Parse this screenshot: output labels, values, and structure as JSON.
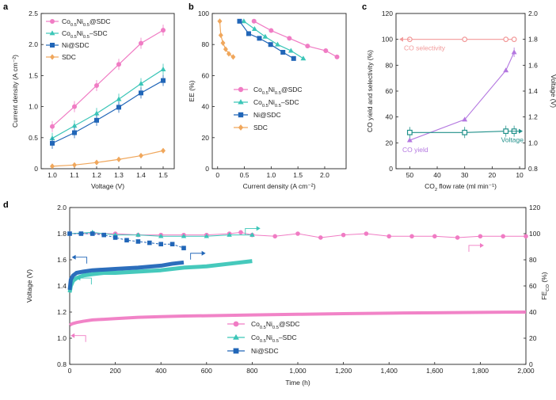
{
  "colors": {
    "co_sdc": "#f07cc4",
    "co_ni_sdc": "#3cc6b8",
    "ni_sdc": "#2166b8",
    "sdc": "#f0a75c",
    "c_selectivity": "#f29a9a",
    "c_yield": "#b478e0",
    "c_voltage": "#20908a",
    "axis": "#222222"
  },
  "chart_data": [
    {
      "panel": "a",
      "type": "line",
      "xlabel": "Voltage (V)",
      "ylabel": "Current density (A cm⁻²)",
      "xlim": [
        0.95,
        1.55
      ],
      "ylim": [
        0,
        2.5
      ],
      "xticks": [
        "1.0",
        "1.1",
        "1.2",
        "1.3",
        "1.4",
        "1.5"
      ],
      "xtick_values": [
        1.0,
        1.1,
        1.2,
        1.3,
        1.4,
        1.5
      ],
      "yticks": [
        "0",
        "0.5",
        "1.0",
        "1.5",
        "2.0",
        "2.5"
      ],
      "ytick_values": [
        0,
        0.5,
        1.0,
        1.5,
        2.0,
        2.5
      ],
      "legend_position": "top-left",
      "series": [
        {
          "key": "co_sdc",
          "name_parts": [
            "Co",
            "0.5",
            "Ni",
            "0.5",
            "@SDC"
          ],
          "marker": "circle",
          "x": [
            1.0,
            1.1,
            1.2,
            1.3,
            1.4,
            1.5
          ],
          "y": [
            0.68,
            1.0,
            1.34,
            1.68,
            2.02,
            2.23
          ]
        },
        {
          "key": "co_ni_sdc",
          "name_parts": [
            "Co",
            "0.5",
            "Ni",
            "0.5",
            "–SDC"
          ],
          "marker": "triangle",
          "x": [
            1.0,
            1.1,
            1.2,
            1.3,
            1.4,
            1.5
          ],
          "y": [
            0.49,
            0.69,
            0.89,
            1.12,
            1.37,
            1.6
          ]
        },
        {
          "key": "ni_sdc",
          "name_parts": [
            "Ni@SDC"
          ],
          "marker": "square",
          "x": [
            1.0,
            1.1,
            1.2,
            1.3,
            1.4,
            1.5
          ],
          "y": [
            0.41,
            0.58,
            0.78,
            0.99,
            1.22,
            1.42
          ]
        },
        {
          "key": "sdc",
          "name_parts": [
            "SDC"
          ],
          "marker": "diamond",
          "x": [
            1.0,
            1.1,
            1.2,
            1.3,
            1.4,
            1.5
          ],
          "y": [
            0.04,
            0.06,
            0.1,
            0.15,
            0.21,
            0.29
          ]
        }
      ]
    },
    {
      "panel": "b",
      "type": "line",
      "xlabel": "Current density (A cm⁻²)",
      "ylabel": "EE (%)",
      "xlim": [
        -0.1,
        2.4
      ],
      "ylim": [
        0,
        100
      ],
      "xticks": [
        "0",
        "0.5",
        "1.0",
        "1.5",
        "2.0"
      ],
      "xtick_values": [
        0,
        0.5,
        1.0,
        1.5,
        2.0
      ],
      "yticks": [
        "0",
        "20",
        "40",
        "60",
        "80",
        "100"
      ],
      "ytick_values": [
        0,
        20,
        40,
        60,
        80,
        100
      ],
      "legend_position": "center-left",
      "series": [
        {
          "key": "co_sdc",
          "name_parts": [
            "Co",
            "0.5",
            "Ni",
            "0.5",
            "@SDC"
          ],
          "marker": "circle",
          "x": [
            0.68,
            1.0,
            1.34,
            1.68,
            2.02,
            2.23
          ],
          "y": [
            95,
            89,
            84,
            79,
            76,
            72
          ]
        },
        {
          "key": "co_ni_sdc",
          "name_parts": [
            "Co",
            "0.5",
            "Ni",
            "0.5",
            "–SDC"
          ],
          "marker": "triangle",
          "x": [
            0.49,
            0.69,
            0.89,
            1.12,
            1.37,
            1.6
          ],
          "y": [
            95,
            90,
            85,
            80,
            76,
            71
          ]
        },
        {
          "key": "ni_sdc",
          "name_parts": [
            "Ni@SDC"
          ],
          "marker": "square",
          "x": [
            0.41,
            0.58,
            0.78,
            0.99,
            1.22,
            1.42
          ],
          "y": [
            95,
            87,
            84,
            80,
            75,
            71
          ]
        },
        {
          "key": "sdc",
          "name_parts": [
            "SDC"
          ],
          "marker": "diamond",
          "x": [
            0.04,
            0.06,
            0.1,
            0.15,
            0.21,
            0.29
          ],
          "y": [
            95,
            86,
            81,
            77,
            74,
            72
          ]
        }
      ]
    },
    {
      "panel": "c",
      "type": "line",
      "xlabel_parts": [
        "CO",
        "2",
        " flow rate (ml min⁻¹)"
      ],
      "ylabel": "CO yield and selectivity (%)",
      "ylabel_right": "Voltage (V)",
      "xlim": [
        55,
        8
      ],
      "ylim": [
        0,
        120
      ],
      "ylim_right": [
        0.8,
        2.0
      ],
      "xticks": [
        "50",
        "40",
        "30",
        "20",
        "10"
      ],
      "xtick_values": [
        50,
        40,
        30,
        20,
        10
      ],
      "yticks": [
        "0",
        "20",
        "40",
        "60",
        "80",
        "100",
        "120"
      ],
      "ytick_values": [
        0,
        20,
        40,
        60,
        80,
        100,
        120
      ],
      "yticks_right": [
        "0.8",
        "1.0",
        "1.2",
        "1.4",
        "1.6",
        "1.8",
        "2.0"
      ],
      "ytick_values_right": [
        0.8,
        1.0,
        1.2,
        1.4,
        1.6,
        1.8,
        2.0
      ],
      "annotations": {
        "selectivity": "CO selectivity",
        "yield": "CO yield",
        "voltage": "Voltage"
      },
      "series": [
        {
          "key": "selectivity",
          "name": "CO selectivity",
          "marker": "circle",
          "axis": "left",
          "x": [
            50,
            30,
            15,
            12
          ],
          "y": [
            100,
            100,
            100,
            100
          ]
        },
        {
          "key": "yield",
          "name": "CO yield",
          "marker": "triangle",
          "axis": "left",
          "x": [
            50,
            30,
            15,
            12
          ],
          "y": [
            22,
            38,
            76,
            90
          ]
        },
        {
          "key": "voltage",
          "name": "Voltage",
          "marker": "square",
          "axis": "right",
          "x": [
            50,
            30,
            15,
            12
          ],
          "y": [
            1.08,
            1.08,
            1.09,
            1.09
          ]
        }
      ]
    },
    {
      "panel": "d",
      "type": "line",
      "xlabel": "Time (h)",
      "ylabel": "Voltage (V)",
      "ylabel_right_parts": [
        "FE",
        "CO",
        " (%)"
      ],
      "xlim": [
        0,
        2000
      ],
      "ylim": [
        0.8,
        2.0
      ],
      "ylim_right": [
        0,
        120
      ],
      "xticks": [
        "0",
        "200",
        "400",
        "600",
        "800",
        "1,000",
        "1,200",
        "1,400",
        "1,600",
        "1,800",
        "2,000"
      ],
      "xtick_values": [
        0,
        200,
        400,
        600,
        800,
        1000,
        1200,
        1400,
        1600,
        1800,
        2000
      ],
      "yticks": [
        "0.8",
        "1.0",
        "1.2",
        "1.4",
        "1.6",
        "1.8",
        "2.0"
      ],
      "ytick_values": [
        0.8,
        1.0,
        1.2,
        1.4,
        1.6,
        1.8,
        2.0
      ],
      "yticks_right": [
        "0",
        "20",
        "40",
        "60",
        "80",
        "100",
        "120"
      ],
      "ytick_values_right": [
        0,
        20,
        40,
        60,
        80,
        100,
        120
      ],
      "legend_position": "bottom-center",
      "voltage_series": [
        {
          "key": "co_sdc",
          "t": [
            0,
            10,
            30,
            60,
            100,
            150,
            200,
            300,
            400,
            500,
            600,
            700,
            800,
            1000,
            1200,
            1400,
            1600,
            1800,
            2000
          ],
          "v": [
            1.1,
            1.11,
            1.12,
            1.13,
            1.14,
            1.145,
            1.15,
            1.16,
            1.165,
            1.17,
            1.172,
            1.175,
            1.178,
            1.183,
            1.188,
            1.192,
            1.195,
            1.198,
            1.2
          ]
        },
        {
          "key": "co_ni_sdc",
          "t": [
            0,
            5,
            15,
            30,
            60,
            100,
            150,
            200,
            300,
            400,
            500,
            600,
            700,
            800
          ],
          "v": [
            1.35,
            1.4,
            1.44,
            1.46,
            1.48,
            1.49,
            1.5,
            1.5,
            1.51,
            1.52,
            1.54,
            1.55,
            1.57,
            1.59
          ]
        },
        {
          "key": "ni_sdc",
          "t": [
            0,
            5,
            15,
            30,
            60,
            100,
            150,
            200,
            300,
            400,
            450,
            500
          ],
          "v": [
            1.37,
            1.45,
            1.48,
            1.5,
            1.51,
            1.52,
            1.525,
            1.53,
            1.54,
            1.555,
            1.57,
            1.58
          ]
        }
      ],
      "fe_series": [
        {
          "key": "co_sdc",
          "t": [
            0,
            100,
            200,
            300,
            400,
            500,
            600,
            700,
            750,
            800,
            900,
            1000,
            1100,
            1200,
            1300,
            1400,
            1500,
            1600,
            1700,
            1800,
            1900,
            2000
          ],
          "fe": [
            100,
            100,
            100,
            99,
            99,
            99,
            99,
            100,
            101,
            99,
            98,
            100,
            97,
            99,
            100,
            98,
            98,
            98,
            97,
            98,
            98,
            98
          ]
        },
        {
          "key": "co_ni_sdc",
          "t": [
            0,
            100,
            200,
            300,
            400,
            500,
            600,
            700,
            800
          ],
          "fe": [
            100,
            101,
            99,
            99,
            98,
            98,
            98,
            99,
            99
          ]
        },
        {
          "key": "ni_sdc",
          "t": [
            0,
            50,
            100,
            150,
            200,
            250,
            300,
            350,
            400,
            450,
            500
          ],
          "fe": [
            100,
            100,
            100,
            99,
            97,
            95,
            94,
            93,
            92,
            92,
            89
          ]
        }
      ],
      "legend": [
        {
          "key": "co_sdc",
          "marker": "circle",
          "name_parts": [
            "Co",
            "0.5",
            "Ni",
            "0.5",
            "@SDC"
          ]
        },
        {
          "key": "co_ni_sdc",
          "marker": "triangle",
          "name_parts": [
            "Co",
            "0.5",
            "Ni",
            "0.5",
            "–SDC"
          ]
        },
        {
          "key": "ni_sdc",
          "marker": "square",
          "name_parts": [
            "Ni@SDC"
          ]
        }
      ]
    }
  ],
  "panel_labels": {
    "a": "a",
    "b": "b",
    "c": "c",
    "d": "d"
  }
}
